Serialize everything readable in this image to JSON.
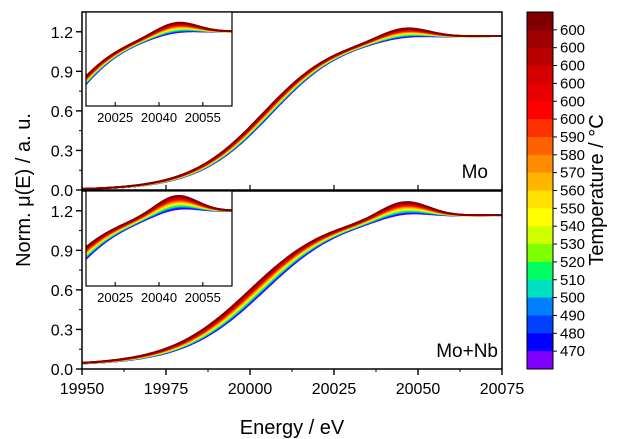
{
  "chart_data": [
    {
      "panel": "Mo",
      "type": "line",
      "label": "Mo",
      "xlabel": "Energy / eV",
      "ylabel": "Norm. μ(E) / a. u.",
      "xlim": [
        19950,
        20075
      ],
      "ylim": [
        0.0,
        1.35
      ],
      "xticks": [
        "19950",
        "19975",
        "20000",
        "20025",
        "20050",
        "20075"
      ],
      "yticks": [
        "0.0",
        "0.3",
        "0.6",
        "0.9",
        "1.2"
      ],
      "edge_center_eV": [
        20004.0,
        20006.5
      ],
      "edge_width_eV": 11.0,
      "plateau": 1.17,
      "inset": {
        "xlim": [
          20015,
          20065
        ],
        "ylim": [
          0.65,
          1.3
        ],
        "xticks": [
          "20025",
          "20040",
          "20055"
        ],
        "peak_eV": 20046,
        "peak_height": [
          0.02,
          0.08
        ]
      }
    },
    {
      "panel": "Mo+Nb",
      "type": "line",
      "label": "Mo+Nb",
      "xlim": [
        19950,
        20075
      ],
      "ylim": [
        0.0,
        1.35
      ],
      "xticks": [
        "19950",
        "19975",
        "20000",
        "20025",
        "20050",
        "20075"
      ],
      "yticks": [
        "0.0",
        "0.3",
        "0.6",
        "0.9",
        "1.2"
      ],
      "edge_center_eV": [
        20000.0,
        20004.5
      ],
      "edge_width_eV": 12.0,
      "plateau": 1.17,
      "baseline_start": 0.03,
      "inset": {
        "xlim": [
          20015,
          20065
        ],
        "ylim": [
          0.65,
          1.3
        ],
        "xticks": [
          "20025",
          "20040",
          "20055"
        ],
        "peak_eV": 20046,
        "peak_height": [
          0.04,
          0.12
        ]
      }
    }
  ],
  "colorbar": {
    "label": "Temperature / °C",
    "ticks": [
      "600",
      "600",
      "600",
      "600",
      "600",
      "600",
      "590",
      "580",
      "570",
      "560",
      "550",
      "540",
      "530",
      "520",
      "510",
      "500",
      "490",
      "480",
      "470"
    ],
    "colors": [
      "#800000",
      "#9c0000",
      "#b80000",
      "#d40000",
      "#e80000",
      "#ff0000",
      "#ff3000",
      "#ff6000",
      "#ff8c00",
      "#ffb400",
      "#ffe000",
      "#ffff00",
      "#d0ff00",
      "#80ff00",
      "#00ff60",
      "#00e0c0",
      "#0080ff",
      "#0040ff",
      "#0000ff",
      "#8000ff"
    ]
  }
}
